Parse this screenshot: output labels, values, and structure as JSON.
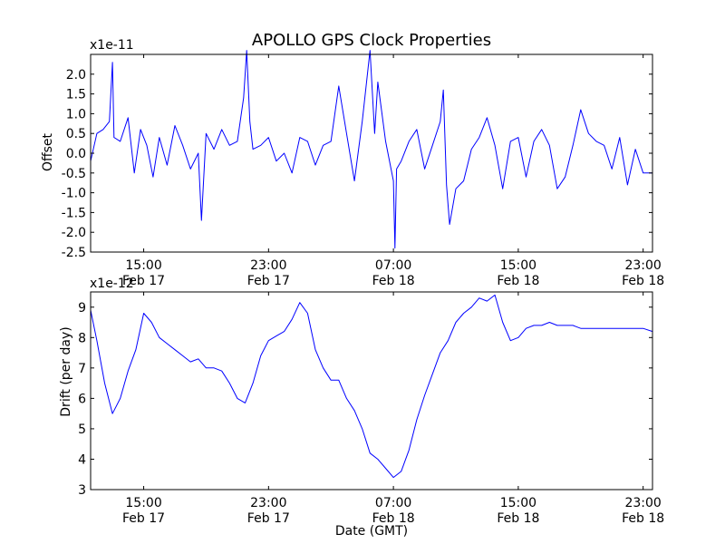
{
  "title": "APOLLO GPS Clock Properties",
  "colors": {
    "series": "#0000ff",
    "axes": "#000000",
    "background": "#ffffff"
  },
  "chart_data": [
    {
      "type": "line",
      "title": "APOLLO GPS Clock Properties",
      "xlabel": "",
      "ylabel": "Offset",
      "y_multiplier": "x1e-11",
      "ylim": [
        -2.5,
        2.5
      ],
      "yticks": [
        -2.5,
        -2.0,
        -1.5,
        -1.0,
        -0.5,
        0.0,
        0.5,
        1.0,
        1.5,
        2.0
      ],
      "ytick_labels": [
        "-2.5",
        "-2.0",
        "-1.5",
        "-1.0",
        "-0.5",
        "0.0",
        "0.5",
        "1.0",
        "1.5",
        "2.0"
      ],
      "xlim_hours": [
        11.6,
        47.6
      ],
      "xticks": [
        15,
        23,
        31,
        39,
        47
      ],
      "xtick_labels": [
        [
          "15:00",
          "Feb 17"
        ],
        [
          "23:00",
          "Feb 17"
        ],
        [
          "07:00",
          "Feb 18"
        ],
        [
          "15:00",
          "Feb 18"
        ],
        [
          "23:00",
          "Feb 18"
        ]
      ],
      "grid": false,
      "series": [
        {
          "color": "#0000ff",
          "x": [
            11.6,
            12.0,
            12.4,
            12.8,
            13.0,
            13.1,
            13.5,
            14.0,
            14.4,
            14.8,
            15.2,
            15.6,
            16.0,
            16.5,
            17.0,
            17.5,
            18.0,
            18.5,
            18.7,
            19.0,
            19.5,
            20.0,
            20.5,
            21.0,
            21.4,
            21.6,
            21.8,
            22.0,
            22.5,
            23.0,
            23.5,
            24.0,
            24.5,
            25.0,
            25.5,
            26.0,
            26.5,
            27.0,
            27.5,
            28.0,
            28.5,
            29.0,
            29.5,
            29.8,
            30.0,
            30.5,
            31.0,
            31.1,
            31.2,
            31.5,
            32.0,
            32.5,
            33.0,
            33.5,
            34.0,
            34.2,
            34.4,
            34.6,
            35.0,
            35.5,
            36.0,
            36.5,
            37.0,
            37.5,
            38.0,
            38.5,
            39.0,
            39.5,
            40.0,
            40.5,
            41.0,
            41.5,
            42.0,
            42.5,
            43.0,
            43.5,
            44.0,
            44.5,
            45.0,
            45.5,
            46.0,
            46.5,
            47.0,
            47.6
          ],
          "y": [
            -0.2,
            0.5,
            0.6,
            0.8,
            2.3,
            0.4,
            0.3,
            0.9,
            -0.5,
            0.6,
            0.2,
            -0.6,
            0.4,
            -0.3,
            0.7,
            0.2,
            -0.4,
            0.0,
            -1.7,
            0.5,
            0.1,
            0.6,
            0.2,
            0.3,
            1.4,
            2.6,
            0.8,
            0.1,
            0.2,
            0.4,
            -0.2,
            0.0,
            -0.5,
            0.4,
            0.3,
            -0.3,
            0.2,
            0.3,
            1.7,
            0.5,
            -0.7,
            0.8,
            2.6,
            0.5,
            1.8,
            0.3,
            -0.7,
            -2.4,
            -0.4,
            -0.2,
            0.3,
            0.6,
            -0.4,
            0.2,
            0.8,
            1.6,
            -0.8,
            -1.8,
            -0.9,
            -0.7,
            0.1,
            0.4,
            0.9,
            0.2,
            -0.9,
            0.3,
            0.4,
            -0.6,
            0.3,
            0.6,
            0.2,
            -0.9,
            -0.6,
            0.2,
            1.1,
            0.5,
            0.3,
            0.2,
            -0.4,
            0.4,
            -0.8,
            0.1,
            -0.5,
            -0.5
          ]
        }
      ]
    },
    {
      "type": "line",
      "title": "",
      "xlabel": "Date (GMT)",
      "ylabel": "Drift (per day)",
      "y_multiplier": "x1e-12",
      "ylim": [
        3,
        9.5
      ],
      "yticks": [
        3,
        4,
        5,
        6,
        7,
        8,
        9
      ],
      "ytick_labels": [
        "3",
        "4",
        "5",
        "6",
        "7",
        "8",
        "9"
      ],
      "xlim_hours": [
        11.6,
        47.6
      ],
      "xticks": [
        15,
        23,
        31,
        39,
        47
      ],
      "xtick_labels": [
        [
          "15:00",
          "Feb 17"
        ],
        [
          "23:00",
          "Feb 17"
        ],
        [
          "07:00",
          "Feb 18"
        ],
        [
          "15:00",
          "Feb 18"
        ],
        [
          "23:00",
          "Feb 18"
        ]
      ],
      "grid": false,
      "series": [
        {
          "color": "#0000ff",
          "x": [
            11.6,
            12.0,
            12.5,
            13.0,
            13.5,
            14.0,
            14.5,
            15.0,
            15.5,
            16.0,
            16.5,
            17.0,
            17.5,
            18.0,
            18.5,
            19.0,
            19.5,
            20.0,
            20.5,
            21.0,
            21.5,
            22.0,
            22.5,
            23.0,
            23.5,
            24.0,
            24.5,
            25.0,
            25.5,
            26.0,
            26.5,
            27.0,
            27.5,
            28.0,
            28.5,
            29.0,
            29.5,
            30.0,
            30.5,
            31.0,
            31.5,
            32.0,
            32.5,
            33.0,
            33.5,
            34.0,
            34.5,
            35.0,
            35.5,
            36.0,
            36.5,
            37.0,
            37.5,
            38.0,
            38.5,
            39.0,
            39.5,
            40.0,
            40.5,
            41.0,
            41.5,
            42.0,
            42.5,
            43.0,
            43.5,
            44.0,
            44.5,
            45.0,
            45.5,
            46.0,
            46.5,
            47.0,
            47.6
          ],
          "y": [
            8.9,
            7.9,
            6.5,
            5.5,
            6.0,
            6.9,
            7.6,
            8.8,
            8.5,
            8.0,
            7.8,
            7.6,
            7.4,
            7.2,
            7.3,
            7.0,
            7.0,
            6.9,
            6.5,
            6.0,
            5.85,
            6.5,
            7.4,
            7.9,
            8.05,
            8.2,
            8.6,
            9.15,
            8.8,
            7.6,
            7.0,
            6.6,
            6.6,
            6.0,
            5.6,
            5.0,
            4.2,
            4.0,
            3.7,
            3.4,
            3.6,
            4.3,
            5.3,
            6.1,
            6.8,
            7.5,
            7.9,
            8.5,
            8.8,
            9.0,
            9.3,
            9.2,
            9.4,
            8.5,
            7.9,
            8.0,
            8.3,
            8.4,
            8.4,
            8.5,
            8.4,
            8.4,
            8.4,
            8.3,
            8.3,
            8.3,
            8.3,
            8.3,
            8.3,
            8.3,
            8.3,
            8.3,
            8.2
          ]
        }
      ]
    }
  ]
}
